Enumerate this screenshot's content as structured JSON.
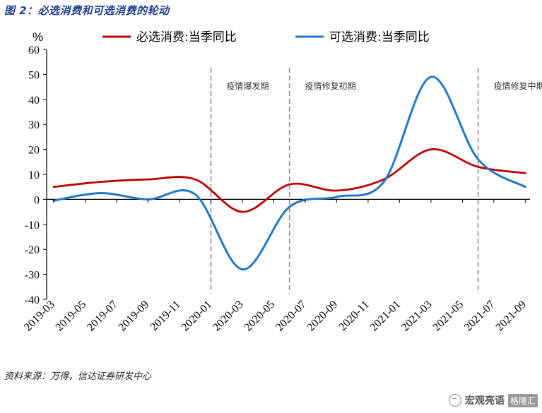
{
  "figure": {
    "title": "图 2：必选消费和可选消费的轮动",
    "source": "资料来源：万得，信达证券研发中心",
    "watermark": "宏观亮语",
    "watermark_sub": "格隆汇"
  },
  "chart_data": {
    "type": "line",
    "ylabel": "%",
    "ylim": [
      -40,
      60
    ],
    "yticks": [
      60,
      50,
      40,
      30,
      20,
      10,
      0,
      -10,
      -20,
      -30,
      -40
    ],
    "x_tick_labels": [
      "2019-03",
      "2019-05",
      "2019-07",
      "2019-09",
      "2019-11",
      "2020-01",
      "2020-03",
      "2020-05",
      "2020-07",
      "2020-09",
      "2020-11",
      "2021-01",
      "2021-03",
      "2021-05",
      "2021-07",
      "2021-09"
    ],
    "legend_position": "top",
    "phases": [
      {
        "label": "疫情爆发期",
        "start": "2020-01"
      },
      {
        "label": "疫情修复初期",
        "start": "2020-06"
      },
      {
        "label": "疫情修复中期",
        "start": "2021-06"
      }
    ],
    "series": [
      {
        "name": "必选消费:当季同比",
        "color": "#c00000",
        "points": [
          [
            "2019-03",
            5
          ],
          [
            "2019-06",
            7
          ],
          [
            "2019-09",
            8
          ],
          [
            "2019-12",
            8
          ],
          [
            "2020-03",
            -5
          ],
          [
            "2020-06",
            6
          ],
          [
            "2020-09",
            3.5
          ],
          [
            "2020-12",
            8
          ],
          [
            "2021-03",
            20
          ],
          [
            "2021-06",
            13
          ],
          [
            "2021-09",
            10.5
          ]
        ]
      },
      {
        "name": "可选消费:当季同比",
        "color": "#1f78c8",
        "points": [
          [
            "2019-03",
            -0.5
          ],
          [
            "2019-06",
            2.5
          ],
          [
            "2019-09",
            0
          ],
          [
            "2019-12",
            2
          ],
          [
            "2020-03",
            -28
          ],
          [
            "2020-06",
            -3
          ],
          [
            "2020-09",
            1
          ],
          [
            "2020-12",
            7
          ],
          [
            "2021-03",
            49
          ],
          [
            "2021-06",
            16
          ],
          [
            "2021-09",
            5
          ]
        ]
      }
    ]
  }
}
